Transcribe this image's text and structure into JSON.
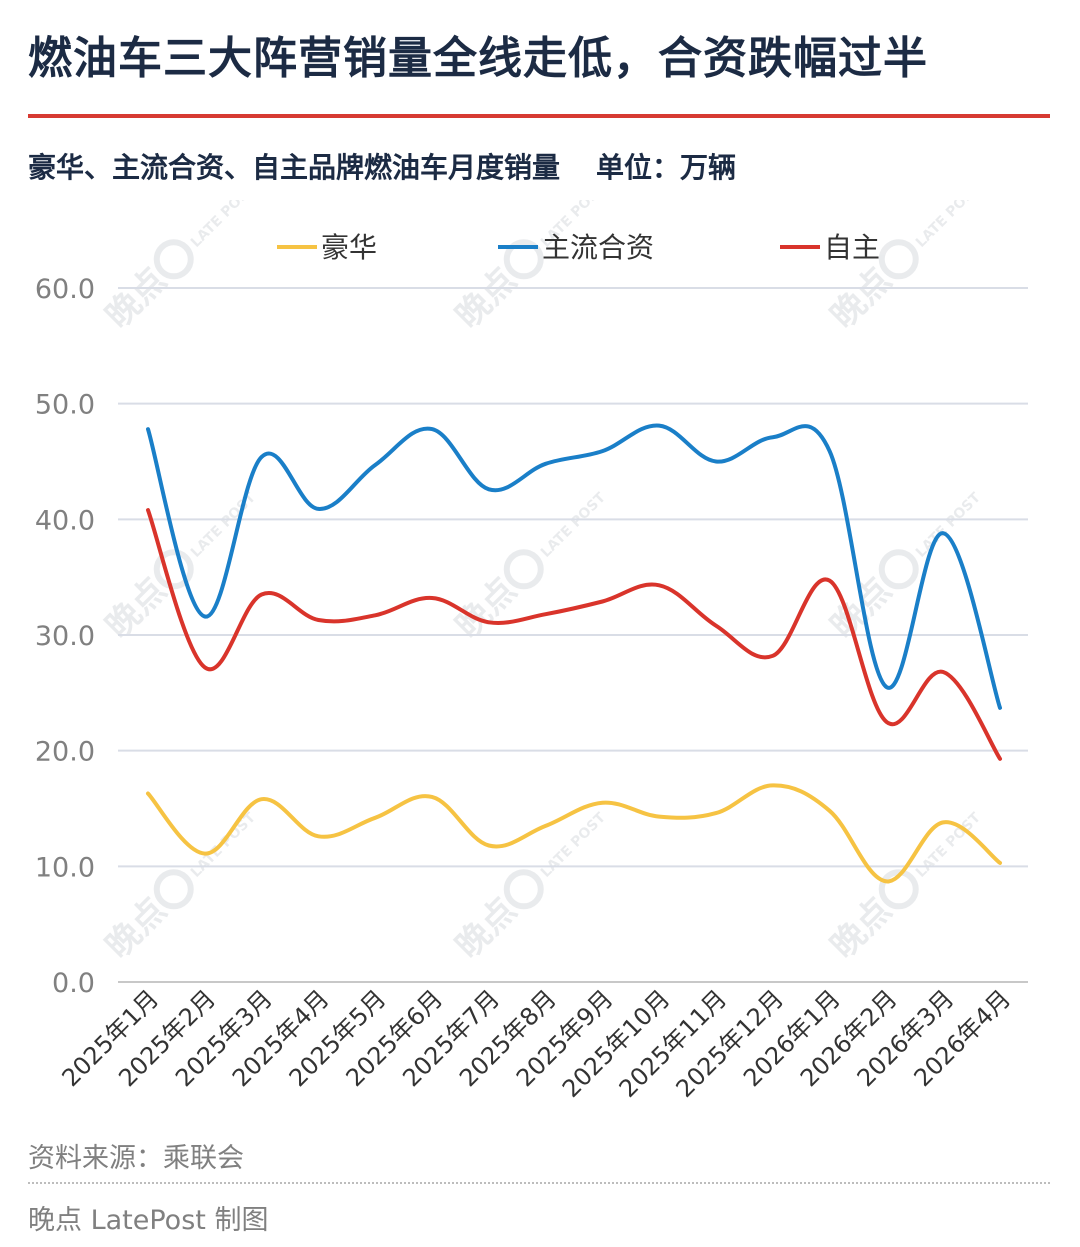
{
  "header": {
    "title": "燃油车三大阵营销量全线走低，合资跌幅过半",
    "subtitle": "豪华、主流合资、自主品牌燃油车月度销量",
    "unit": "单位：万辆"
  },
  "footer": {
    "source": "资料来源：乘联会",
    "credit": "晚点 LatePost 制图"
  },
  "watermark": {
    "text": "晚点",
    "brand": "LATE POST"
  },
  "chart_data": {
    "type": "line",
    "categories": [
      "2025年1月",
      "2025年2月",
      "2025年3月",
      "2025年4月",
      "2025年5月",
      "2025年6月",
      "2025年7月",
      "2025年8月",
      "2025年9月",
      "2025年10月",
      "2025年11月",
      "2025年12月",
      "2026年1月",
      "2026年2月",
      "2026年3月",
      "2026年4月"
    ],
    "series": [
      {
        "name": "豪华",
        "color": "#f6c343",
        "values": [
          16.3,
          11.1,
          15.8,
          12.6,
          14.2,
          16.0,
          11.8,
          13.5,
          15.5,
          14.3,
          14.6,
          17.0,
          14.8,
          8.7,
          13.8,
          10.3
        ]
      },
      {
        "name": "主流合资",
        "color": "#1a7fc8",
        "values": [
          47.8,
          31.6,
          45.4,
          40.9,
          44.7,
          47.8,
          42.6,
          44.8,
          45.9,
          48.1,
          45.0,
          47.1,
          45.9,
          25.5,
          38.8,
          23.7
        ]
      },
      {
        "name": "自主",
        "color": "#d9342b",
        "values": [
          40.8,
          27.2,
          33.5,
          31.3,
          31.7,
          33.2,
          31.1,
          31.8,
          32.9,
          34.3,
          30.8,
          28.2,
          34.7,
          22.5,
          26.8,
          19.3
        ]
      }
    ],
    "yticks": [
      "0.0",
      "10.0",
      "20.0",
      "30.0",
      "40.0",
      "50.0",
      "60.0"
    ],
    "ylim": [
      0,
      60
    ],
    "grid": true,
    "legend_position": "top-center"
  }
}
